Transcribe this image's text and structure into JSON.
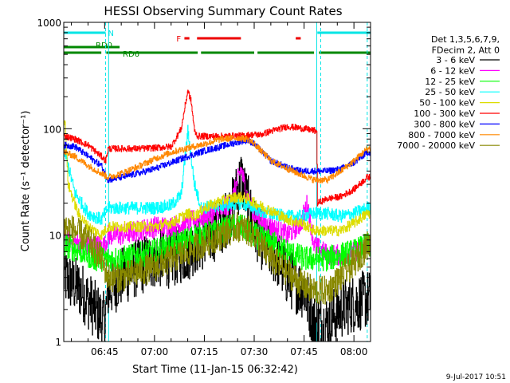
{
  "chart_data": {
    "type": "line",
    "title": "HESSI Observing Summary Count Rates",
    "xlabel": "Start Time (11-Jan-15 06:32:42)",
    "ylabel": "Count Rate (s⁻¹ detector⁻¹)",
    "y_scale": "log",
    "ylim": [
      1,
      1000
    ],
    "xlim": [
      "06:32:42",
      "08:05:00"
    ],
    "x_unit": "minutes after 06:00",
    "x_ticks": [
      {
        "t": 45,
        "label": "06:45"
      },
      {
        "t": 60,
        "label": "07:00"
      },
      {
        "t": 75,
        "label": "07:15"
      },
      {
        "t": 90,
        "label": "07:30"
      },
      {
        "t": 105,
        "label": "07:45"
      },
      {
        "t": 120,
        "label": "08:00"
      }
    ],
    "y_ticks": [
      {
        "v": 1,
        "label": "1"
      },
      {
        "v": 10,
        "label": "10"
      },
      {
        "v": 100,
        "label": "100"
      },
      {
        "v": 1000,
        "label": "1000"
      }
    ],
    "legend_header": [
      "Det 1,3,5,6,7,9,",
      "FDecim 2, Att 0"
    ],
    "legend_position": "right",
    "flags": [
      {
        "label": "N",
        "color": "#00e5e5",
        "segments": [
          [
            32.7,
            45.3
          ],
          [
            109.0,
            125.0
          ]
        ]
      },
      {
        "label": "F",
        "color": "#ee0000",
        "segments": [
          [
            69.0,
            70.5
          ],
          [
            72.8,
            86.0
          ],
          [
            102.5,
            104.0
          ]
        ]
      },
      {
        "label": "RD0",
        "color": "#008800",
        "segments": [
          [
            32.7,
            49.5
          ]
        ]
      },
      {
        "label": "RD6",
        "color": "#008800",
        "segments": [
          [
            32.7,
            44.0
          ],
          [
            45.5,
            73.0
          ],
          [
            74.0,
            90.0
          ],
          [
            91.0,
            108.0
          ],
          [
            109.5,
            125.0
          ]
        ]
      }
    ],
    "vlines": [
      {
        "t": 45.3,
        "color": "#00e5e5",
        "style": "dashed"
      },
      {
        "t": 46.2,
        "color": "#00e5e5",
        "style": "solid"
      },
      {
        "t": 108.8,
        "color": "#00e5e5",
        "style": "solid"
      },
      {
        "t": 110.0,
        "color": "#00e5e5",
        "style": "dashed"
      },
      {
        "t": 124.0,
        "color": "#00e5e5",
        "style": "dashed"
      }
    ],
    "series": [
      {
        "name": "3 - 6 keV",
        "color": "#000000",
        "noise": 0.28,
        "x": [
          33,
          38,
          42,
          45,
          46,
          50,
          55,
          60,
          65,
          70,
          72,
          75,
          80,
          83,
          86,
          88,
          90,
          93,
          97,
          100,
          105,
          108,
          112,
          116,
          120,
          124
        ],
        "y": [
          4,
          3,
          2,
          1.5,
          3,
          4,
          5,
          6,
          6,
          7,
          8,
          9,
          12,
          17,
          35,
          20,
          12,
          8,
          6,
          4,
          3,
          1.5,
          1.5,
          2,
          2.3,
          2.5
        ]
      },
      {
        "name": "6 - 12 keV",
        "color": "#ff00ff",
        "noise": 0.1,
        "x": [
          33,
          40,
          45,
          46,
          50,
          55,
          60,
          65,
          70,
          72,
          75,
          80,
          83,
          86,
          88,
          90,
          93,
          97,
          100,
          104,
          106,
          108,
          112,
          116,
          120,
          124
        ],
        "y": [
          9,
          8,
          8,
          10,
          10,
          11,
          12,
          12,
          13,
          14,
          15,
          17,
          20,
          42,
          22,
          16,
          13,
          11,
          10,
          13,
          20,
          8,
          6.5,
          6.5,
          7,
          8
        ]
      },
      {
        "name": "12 - 25 keV",
        "color": "#00ff00",
        "noise": 0.12,
        "x": [
          33,
          38,
          42,
          45,
          46,
          50,
          55,
          60,
          65,
          70,
          72,
          75,
          80,
          83,
          86,
          88,
          90,
          93,
          97,
          100,
          105,
          108,
          112,
          116,
          120,
          124
        ],
        "y": [
          8,
          7,
          6,
          6,
          6,
          6,
          6.5,
          7,
          8,
          9,
          10,
          10,
          11,
          12,
          12,
          11,
          10,
          9,
          8,
          7,
          6,
          6,
          6,
          6.5,
          7,
          8
        ]
      },
      {
        "name": "25 - 50 keV",
        "color": "#00ffff",
        "noise": 0.06,
        "x": [
          33,
          36,
          40,
          44,
          46,
          50,
          55,
          60,
          65,
          68,
          70,
          72,
          74,
          80,
          86,
          88,
          90,
          93,
          100,
          104,
          108,
          112,
          116,
          120,
          124
        ],
        "y": [
          60,
          25,
          16,
          14,
          18,
          18,
          18,
          18,
          19,
          24,
          95,
          30,
          18,
          19,
          20,
          19,
          18,
          16,
          15,
          15,
          16,
          16,
          15,
          16,
          18
        ]
      },
      {
        "name": "50 - 100 keV",
        "color": "#dddd00",
        "noise": 0.05,
        "x": [
          33,
          34,
          37,
          40,
          44,
          46,
          50,
          55,
          60,
          65,
          70,
          72,
          75,
          80,
          85,
          88,
          90,
          95,
          100,
          104,
          108,
          112,
          116,
          120,
          124
        ],
        "y": [
          120,
          30,
          16,
          12,
          10,
          12,
          12,
          12,
          12,
          13,
          16,
          15,
          18,
          21,
          23,
          22,
          20,
          17,
          14,
          13,
          11,
          11,
          11,
          13,
          16
        ]
      },
      {
        "name": "100 - 300 keV",
        "color": "#ff0000",
        "noise": 0.03,
        "x": [
          33,
          36,
          40,
          44,
          45.3,
          46,
          50,
          55,
          60,
          65,
          68,
          70,
          71,
          72,
          73,
          80,
          86,
          90,
          92,
          95,
          100,
          105,
          108.8,
          109,
          112,
          116,
          120,
          124
        ],
        "y": [
          85,
          80,
          70,
          55,
          50,
          65,
          65,
          65,
          66,
          68,
          100,
          230,
          180,
          95,
          85,
          85,
          86,
          88,
          88,
          95,
          105,
          100,
          95,
          20,
          22,
          23,
          27,
          35
        ]
      },
      {
        "name": "300 - 800 keV",
        "color": "#0000ff",
        "noise": 0.03,
        "x": [
          33,
          36,
          40,
          44,
          46,
          50,
          55,
          60,
          65,
          70,
          75,
          80,
          85,
          88,
          90,
          92,
          95,
          100,
          104,
          108,
          112,
          116,
          120,
          124
        ],
        "y": [
          70,
          68,
          55,
          45,
          33,
          35,
          38,
          42,
          48,
          55,
          62,
          68,
          75,
          78,
          72,
          62,
          50,
          43,
          40,
          40,
          40,
          42,
          48,
          60
        ]
      },
      {
        "name": "800 - 7000 keV",
        "color": "#ff8800",
        "noise": 0.03,
        "x": [
          33,
          36,
          40,
          44,
          46,
          50,
          55,
          60,
          65,
          70,
          75,
          80,
          85,
          88,
          90,
          92,
          95,
          100,
          104,
          108,
          112,
          116,
          120,
          124
        ],
        "y": [
          60,
          55,
          45,
          38,
          35,
          38,
          44,
          52,
          60,
          66,
          72,
          80,
          82,
          80,
          72,
          62,
          50,
          42,
          37,
          33,
          33,
          40,
          50,
          65
        ]
      },
      {
        "name": "7000 - 20000 keV",
        "color": "#888800",
        "noise": 0.14,
        "x": [
          33,
          36,
          40,
          44,
          46,
          50,
          55,
          60,
          65,
          70,
          75,
          80,
          85,
          88,
          90,
          92,
          95,
          100,
          104,
          108,
          112,
          116,
          120,
          124
        ],
        "y": [
          12,
          11,
          9,
          6,
          4,
          4,
          4.5,
          5,
          6,
          7,
          8.5,
          10,
          12,
          11,
          10,
          8,
          6,
          4.5,
          3.5,
          3,
          3,
          4,
          5.5,
          8
        ]
      }
    ]
  },
  "footer": {
    "date_stamp": "9-Jul-2017 10:51"
  }
}
